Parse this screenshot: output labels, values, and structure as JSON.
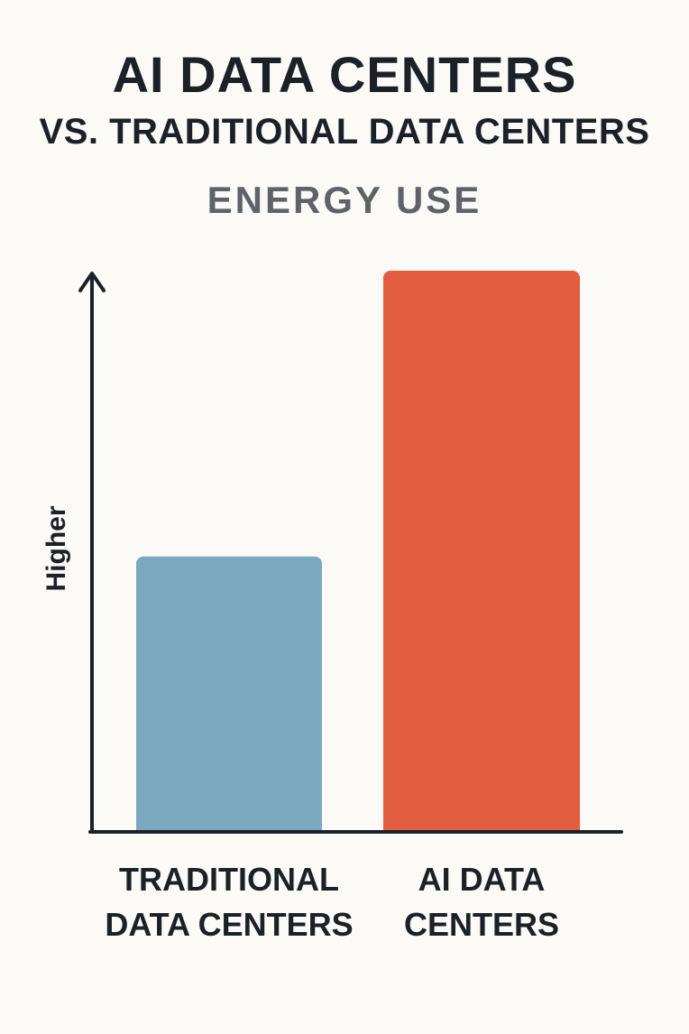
{
  "chart_data": {
    "type": "bar",
    "title": "AI DATA CENTERS",
    "subtitle": "VS. TRADITIONAL DATA CENTERS",
    "metric_label": "ENERGY USE",
    "ylabel": "Higher",
    "xlabel": "",
    "categories": [
      "TRADITIONAL\nDATA CENTERS",
      "AI DATA\nCENTERS"
    ],
    "values": [
      49,
      100
    ],
    "ylim": [
      0,
      100
    ],
    "colors": [
      "#79a8bf",
      "#e35d3f"
    ],
    "grid": false,
    "legend": "none"
  },
  "colors": {
    "background": "#fbfaf7",
    "text": "#1c2127",
    "subtitle_text": "#5f6369",
    "axis": "#1c2127"
  }
}
